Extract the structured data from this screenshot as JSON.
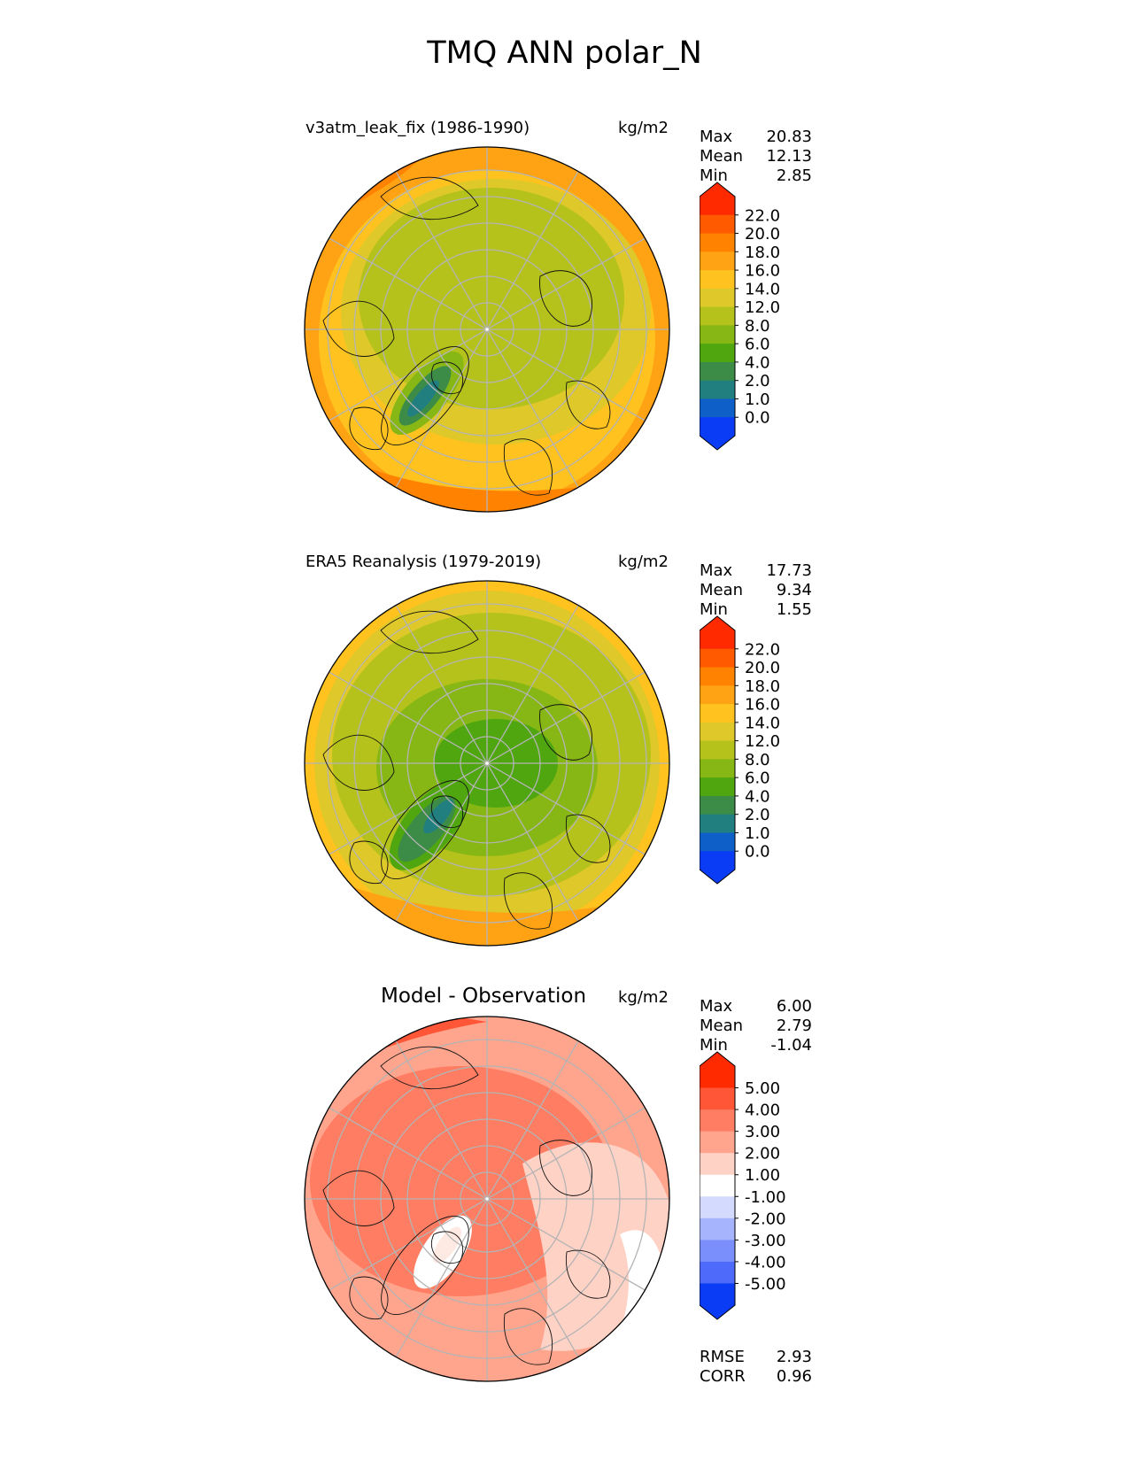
{
  "title": "TMQ ANN polar_N",
  "chart_data": [
    {
      "type": "heatmap",
      "projection": "north polar stereographic",
      "title": "v3atm_leak_fix (1986-1990)",
      "units": "kg/m2",
      "stats": {
        "max_label": "Max",
        "max": "20.83",
        "mean_label": "Mean",
        "mean": "12.13",
        "min_label": "Min",
        "min": "2.85"
      },
      "colorbar": {
        "ticks": [
          "22.0",
          "20.0",
          "18.0",
          "16.0",
          "14.0",
          "12.0",
          "8.0",
          "6.0",
          "4.0",
          "2.0",
          "1.0",
          "0.0"
        ],
        "colors": [
          "#ff2a00",
          "#ff5a00",
          "#ff8300",
          "#ffa214",
          "#ffc21e",
          "#dfc829",
          "#b5c21c",
          "#87b715",
          "#4fa60f",
          "#3c8c48",
          "#217f80",
          "#0e5fc8",
          "#0a3cf5"
        ],
        "extend": "both"
      }
    },
    {
      "type": "heatmap",
      "projection": "north polar stereographic",
      "title": "ERA5 Reanalysis (1979-2019)",
      "units": "kg/m2",
      "stats": {
        "max_label": "Max",
        "max": "17.73",
        "mean_label": "Mean",
        "mean": "9.34",
        "min_label": "Min",
        "min": "1.55"
      },
      "colorbar": {
        "ticks": [
          "22.0",
          "20.0",
          "18.0",
          "16.0",
          "14.0",
          "12.0",
          "8.0",
          "6.0",
          "4.0",
          "2.0",
          "1.0",
          "0.0"
        ],
        "colors": [
          "#ff2a00",
          "#ff5a00",
          "#ff8300",
          "#ffa214",
          "#ffc21e",
          "#dfc829",
          "#b5c21c",
          "#87b715",
          "#4fa60f",
          "#3c8c48",
          "#217f80",
          "#0e5fc8",
          "#0a3cf5"
        ],
        "extend": "both"
      }
    },
    {
      "type": "heatmap",
      "projection": "north polar stereographic",
      "title": "Model - Observation",
      "units": "kg/m2",
      "stats": {
        "max_label": "Max",
        "max": "6.00",
        "mean_label": "Mean",
        "mean": "2.79",
        "min_label": "Min",
        "min": "-1.04"
      },
      "metrics": {
        "rmse_label": "RMSE",
        "rmse": "2.93",
        "corr_label": "CORR",
        "corr": "0.96"
      },
      "colorbar": {
        "ticks": [
          "5.00",
          "4.00",
          "3.00",
          "2.00",
          "1.00",
          "-1.00",
          "-2.00",
          "-3.00",
          "-4.00",
          "-5.00"
        ],
        "colors": [
          "#ff2a00",
          "#ff5638",
          "#ff7d62",
          "#ffa58e",
          "#ffd2c6",
          "#ffffff",
          "#d3dafe",
          "#a6b4fd",
          "#7a8ffc",
          "#4d6afa",
          "#0a3cf5"
        ],
        "extend": "both"
      }
    }
  ]
}
